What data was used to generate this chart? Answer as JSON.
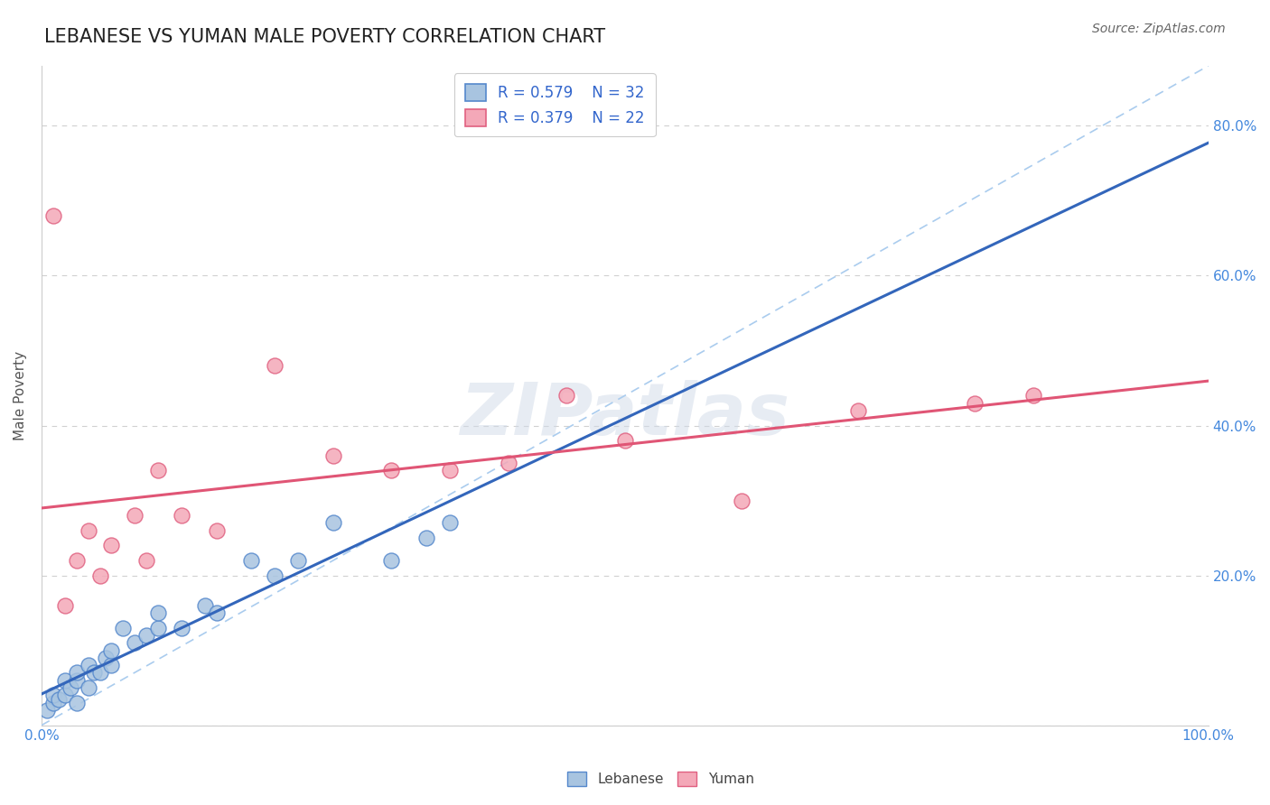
{
  "title": "LEBANESE VS YUMAN MALE POVERTY CORRELATION CHART",
  "source": "Source: ZipAtlas.com",
  "ylabel": "Male Poverty",
  "background_color": "#ffffff",
  "grid_color": "#d0d0d0",
  "lebanese_fill": "#a8c4e0",
  "lebanese_edge": "#5588cc",
  "yuman_fill": "#f4a8b8",
  "yuman_edge": "#e06080",
  "lebanese_line_color": "#3366bb",
  "yuman_line_color": "#e05575",
  "ref_line_color": "#aaccee",
  "lebanese_R": 0.579,
  "lebanese_N": 32,
  "yuman_R": 0.379,
  "yuman_N": 22,
  "lebanese_scatter_x": [
    0.005,
    0.01,
    0.01,
    0.015,
    0.02,
    0.02,
    0.025,
    0.03,
    0.03,
    0.03,
    0.04,
    0.04,
    0.045,
    0.05,
    0.055,
    0.06,
    0.06,
    0.07,
    0.08,
    0.09,
    0.1,
    0.1,
    0.12,
    0.14,
    0.15,
    0.18,
    0.2,
    0.22,
    0.25,
    0.3,
    0.33,
    0.35
  ],
  "lebanese_scatter_y": [
    0.02,
    0.03,
    0.04,
    0.035,
    0.04,
    0.06,
    0.05,
    0.03,
    0.06,
    0.07,
    0.05,
    0.08,
    0.07,
    0.07,
    0.09,
    0.08,
    0.1,
    0.13,
    0.11,
    0.12,
    0.13,
    0.15,
    0.13,
    0.16,
    0.15,
    0.22,
    0.2,
    0.22,
    0.27,
    0.22,
    0.25,
    0.27
  ],
  "yuman_scatter_x": [
    0.01,
    0.02,
    0.03,
    0.04,
    0.05,
    0.06,
    0.08,
    0.09,
    0.1,
    0.12,
    0.15,
    0.2,
    0.25,
    0.3,
    0.35,
    0.4,
    0.45,
    0.5,
    0.6,
    0.7,
    0.8,
    0.85
  ],
  "yuman_scatter_y": [
    0.68,
    0.16,
    0.22,
    0.26,
    0.2,
    0.24,
    0.28,
    0.22,
    0.34,
    0.28,
    0.26,
    0.48,
    0.36,
    0.34,
    0.34,
    0.35,
    0.44,
    0.38,
    0.3,
    0.42,
    0.43,
    0.44
  ],
  "xlim": [
    0.0,
    1.0
  ],
  "ylim": [
    0.0,
    0.88
  ],
  "yticks": [
    0.0,
    0.2,
    0.4,
    0.6,
    0.8
  ],
  "ytick_labels": [
    "",
    "20.0%",
    "40.0%",
    "60.0%",
    "80.0%"
  ],
  "xtick_labels_show": [
    "0.0%",
    "100.0%"
  ]
}
